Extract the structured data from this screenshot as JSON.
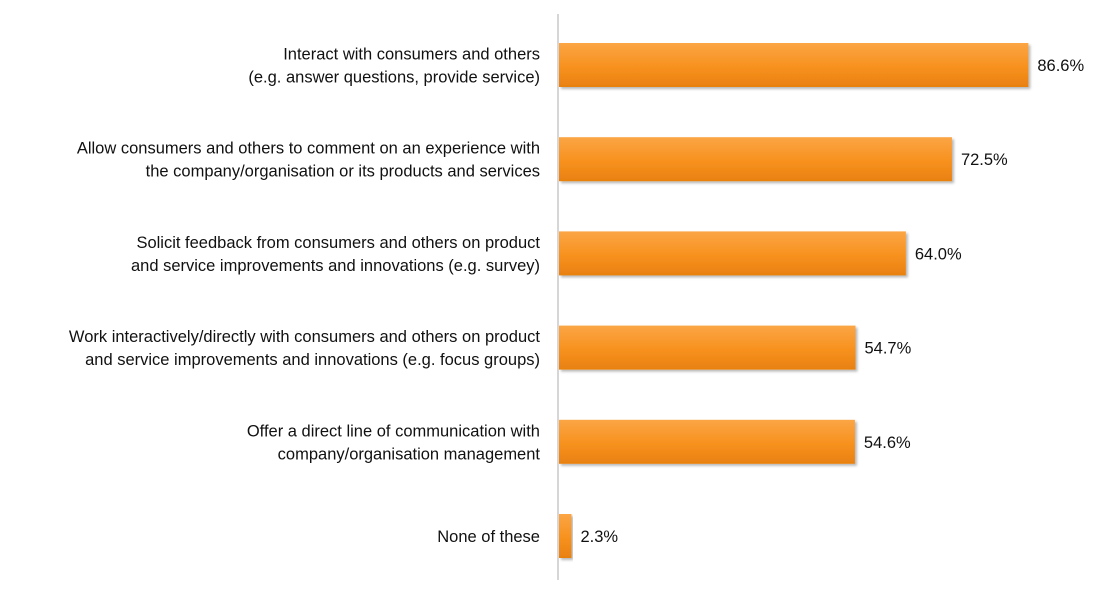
{
  "chart_data": {
    "type": "bar",
    "orientation": "horizontal",
    "categories": [
      [
        "Interact with consumers and others",
        "(e.g. answer questions, provide service)"
      ],
      [
        "Allow consumers and others to comment on an experience with",
        "the company/organisation or its products and services"
      ],
      [
        "Solicit feedback from consumers and others on product",
        "and service improvements and innovations (e.g. survey)"
      ],
      [
        "Work interactively/directly with consumers and others on product",
        "and service improvements and innovations (e.g. focus groups)"
      ],
      [
        "Offer a direct line of communication with",
        "company/organisation management"
      ],
      [
        "None of these"
      ]
    ],
    "values": [
      86.6,
      72.5,
      64.0,
      54.7,
      54.6,
      2.3
    ],
    "value_labels": [
      "86.6%",
      "72.5%",
      "64.0%",
      "54.7%",
      "54.6%",
      "2.3%"
    ],
    "xlim": [
      0,
      100
    ],
    "grid": false,
    "legend": "none",
    "title": "",
    "xlabel": "",
    "ylabel": "",
    "colors": {
      "bar": "#F7911E",
      "bar_dark": "#E27A10",
      "axis": "#C8C8C8"
    }
  }
}
